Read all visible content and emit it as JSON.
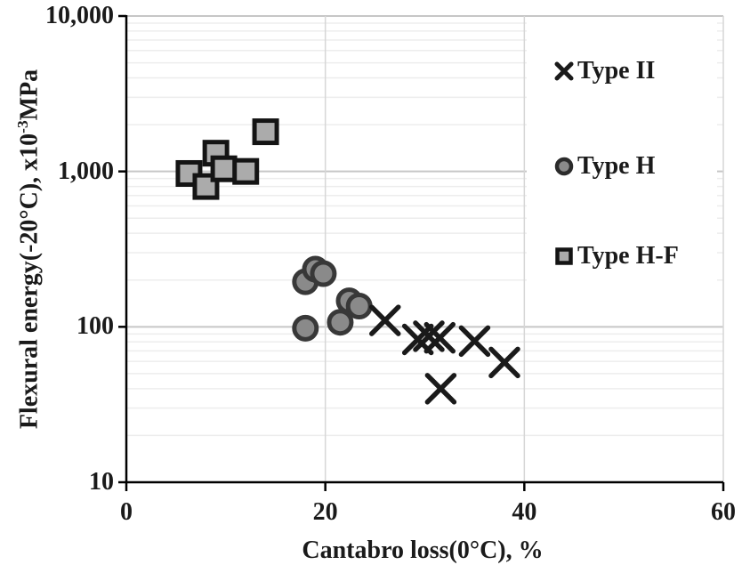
{
  "chart_data": {
    "type": "scatter",
    "title": "",
    "xlabel": "Cantabro loss(0°C), %",
    "ylabel": "Flexural energy(-20°C), x10-3MPa",
    "ylabel_parts": {
      "prefix": "Flexural energy(-20°C), x10",
      "superscript": "-3",
      "suffix": "MPa"
    },
    "x_axis": {
      "min": 0,
      "max": 60,
      "scale": "linear",
      "ticks": [
        0,
        20,
        40,
        60
      ],
      "tick_labels": [
        "0",
        "20",
        "40",
        "60"
      ],
      "grid": true
    },
    "y_axis": {
      "min": 10,
      "max": 10000,
      "scale": "log",
      "ticks": [
        10,
        100,
        1000,
        10000
      ],
      "tick_labels": [
        "10",
        "100",
        "1,000",
        "10,000"
      ],
      "grid": true,
      "minor_grid": true
    },
    "legend": {
      "position": "top-right",
      "background": "#ffffff"
    },
    "colors": {
      "text": "#1a1a1a",
      "axis": "#000000",
      "major_grid": "#c6c6c6",
      "minor_grid": "#ededed",
      "vertical_grid": "#d6d6d6"
    },
    "series": [
      {
        "name": "Type II",
        "marker": "x",
        "stroke": "#1a1a1a",
        "points": [
          [
            26,
            110
          ],
          [
            29.3,
            83
          ],
          [
            30.4,
            87
          ],
          [
            31.5,
            85
          ],
          [
            35,
            81
          ],
          [
            38,
            59
          ],
          [
            31.6,
            40
          ]
        ]
      },
      {
        "name": "Type H",
        "marker": "circle",
        "fill": "#8a8a8a",
        "stroke": "#383838",
        "points": [
          [
            18,
            195
          ],
          [
            19,
            235
          ],
          [
            19.8,
            220
          ],
          [
            22.4,
            147
          ],
          [
            23.4,
            136
          ],
          [
            21.5,
            107
          ],
          [
            18,
            98
          ]
        ]
      },
      {
        "name": "Type H-F",
        "marker": "square",
        "fill": "#ababab",
        "stroke": "#141414",
        "points": [
          [
            6.3,
            970
          ],
          [
            8,
            800
          ],
          [
            9,
            1310
          ],
          [
            9.8,
            1040
          ],
          [
            12,
            1000
          ],
          [
            14,
            1800
          ]
        ]
      }
    ]
  }
}
